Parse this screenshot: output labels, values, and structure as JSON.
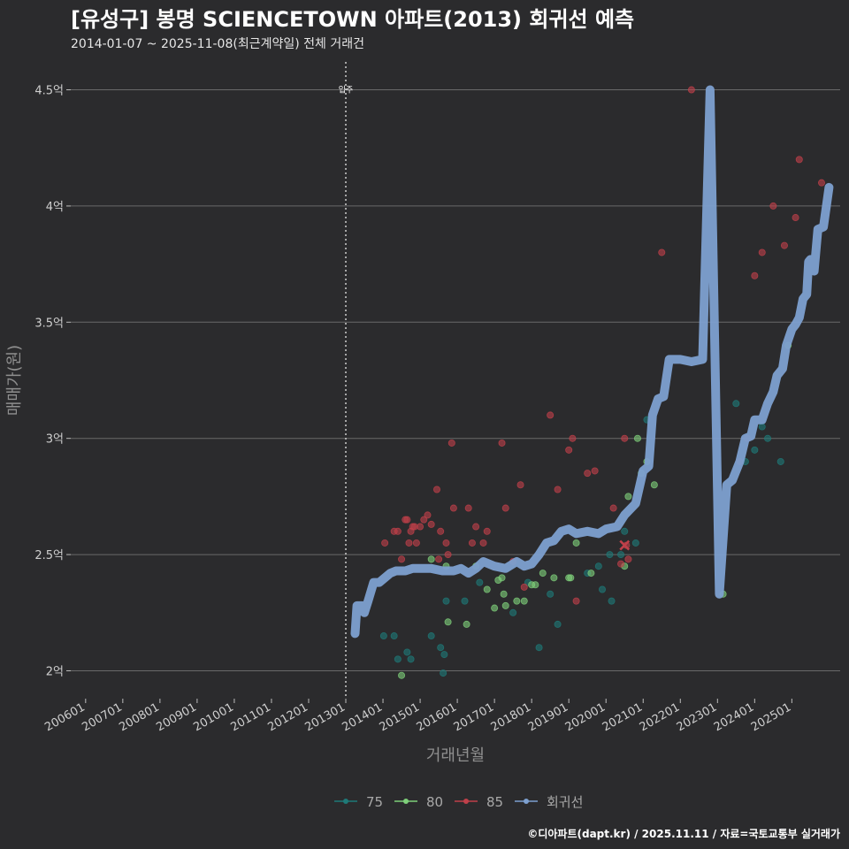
{
  "chart_data": {
    "type": "scatter",
    "title": "[유성구] 봉명 SCIENCETOWN 아파트(2013) 회귀선 예측",
    "subtitle": "2014-01-07 ~ 2025-11-08(최근계약일) 전체 거래건",
    "xlabel": "거래년월",
    "ylabel": "매매가(원)",
    "caption": "©디아파트(dapt.kr) / 2025.11.11 / 자료=국토교통부 실거래가",
    "annotation": "입주",
    "annotation_x": 2013.0,
    "xlim": [
      2005.6,
      2026.3
    ],
    "ylim": [
      1.88,
      4.62
    ],
    "x_ticks": [
      {
        "label": "200601",
        "x": 2006.0
      },
      {
        "label": "200701",
        "x": 2007.0
      },
      {
        "label": "200801",
        "x": 2008.0
      },
      {
        "label": "200901",
        "x": 2009.0
      },
      {
        "label": "201001",
        "x": 2010.0
      },
      {
        "label": "201101",
        "x": 2011.0
      },
      {
        "label": "201201",
        "x": 2012.0
      },
      {
        "label": "201301",
        "x": 2013.0
      },
      {
        "label": "201401",
        "x": 2014.0
      },
      {
        "label": "201501",
        "x": 2015.0
      },
      {
        "label": "201601",
        "x": 2016.0
      },
      {
        "label": "201701",
        "x": 2017.0
      },
      {
        "label": "201801",
        "x": 2018.0
      },
      {
        "label": "201901",
        "x": 2019.0
      },
      {
        "label": "202001",
        "x": 2020.0
      },
      {
        "label": "202101",
        "x": 2021.0
      },
      {
        "label": "202201",
        "x": 2022.0
      },
      {
        "label": "202301",
        "x": 2023.0
      },
      {
        "label": "202401",
        "x": 2024.0
      },
      {
        "label": "202501",
        "x": 2025.0
      }
    ],
    "y_ticks": [
      {
        "label": "2억",
        "y": 2.0
      },
      {
        "label": "2.5억",
        "y": 2.5
      },
      {
        "label": "3억",
        "y": 3.0
      },
      {
        "label": "3.5억",
        "y": 3.5
      },
      {
        "label": "4억",
        "y": 4.0
      },
      {
        "label": "4.5억",
        "y": 4.5
      }
    ],
    "legend": [
      {
        "name": "75",
        "color": "#1e7a78"
      },
      {
        "name": "80",
        "color": "#7ed07a"
      },
      {
        "name": "85",
        "color": "#c0404a"
      },
      {
        "name": "회귀선",
        "color": "#7da0d0"
      }
    ],
    "series": [
      {
        "name": "75",
        "color": "#1e7a78",
        "points": [
          [
            2014.02,
            2.15
          ],
          [
            2014.3,
            2.15
          ],
          [
            2014.4,
            2.05
          ],
          [
            2014.65,
            2.08
          ],
          [
            2014.75,
            2.05
          ],
          [
            2015.3,
            2.15
          ],
          [
            2015.55,
            2.1
          ],
          [
            2015.62,
            1.99
          ],
          [
            2015.65,
            2.07
          ],
          [
            2015.7,
            2.3
          ],
          [
            2016.2,
            2.3
          ],
          [
            2016.6,
            2.38
          ],
          [
            2017.5,
            2.25
          ],
          [
            2017.9,
            2.38
          ],
          [
            2018.2,
            2.1
          ],
          [
            2018.5,
            2.33
          ],
          [
            2018.7,
            2.2
          ],
          [
            2019.5,
            2.42
          ],
          [
            2019.8,
            2.45
          ],
          [
            2019.9,
            2.35
          ],
          [
            2020.1,
            2.5
          ],
          [
            2020.15,
            2.3
          ],
          [
            2020.4,
            2.5
          ],
          [
            2020.5,
            2.6
          ],
          [
            2020.8,
            2.55
          ],
          [
            2021.1,
            3.08
          ],
          [
            2023.5,
            3.15
          ],
          [
            2023.75,
            2.9
          ],
          [
            2024.0,
            2.95
          ],
          [
            2024.2,
            3.05
          ],
          [
            2024.35,
            3.0
          ],
          [
            2024.7,
            2.9
          ]
        ]
      },
      {
        "name": "80",
        "color": "#7ed07a",
        "points": [
          [
            2014.5,
            1.98
          ],
          [
            2015.3,
            2.48
          ],
          [
            2015.7,
            2.45
          ],
          [
            2015.75,
            2.21
          ],
          [
            2016.25,
            2.2
          ],
          [
            2016.5,
            2.45
          ],
          [
            2016.8,
            2.35
          ],
          [
            2017.0,
            2.27
          ],
          [
            2017.1,
            2.39
          ],
          [
            2017.2,
            2.4
          ],
          [
            2017.25,
            2.33
          ],
          [
            2017.3,
            2.28
          ],
          [
            2017.6,
            2.3
          ],
          [
            2017.8,
            2.3
          ],
          [
            2018.0,
            2.37
          ],
          [
            2018.1,
            2.37
          ],
          [
            2018.3,
            2.42
          ],
          [
            2018.6,
            2.4
          ],
          [
            2019.0,
            2.4
          ],
          [
            2019.05,
            2.4
          ],
          [
            2019.2,
            2.55
          ],
          [
            2019.6,
            2.42
          ],
          [
            2020.5,
            2.45
          ],
          [
            2020.6,
            2.75
          ],
          [
            2020.85,
            3.0
          ],
          [
            2020.95,
            2.85
          ],
          [
            2021.1,
            2.9
          ],
          [
            2021.3,
            2.8
          ],
          [
            2023.15,
            2.33
          ],
          [
            2024.9,
            3.4
          ]
        ]
      },
      {
        "name": "85",
        "color": "#c0404a",
        "points": [
          [
            2014.05,
            2.55
          ],
          [
            2014.3,
            2.6
          ],
          [
            2014.4,
            2.6
          ],
          [
            2014.5,
            2.48
          ],
          [
            2014.6,
            2.65
          ],
          [
            2014.65,
            2.65
          ],
          [
            2014.7,
            2.55
          ],
          [
            2014.75,
            2.6
          ],
          [
            2014.8,
            2.62
          ],
          [
            2014.85,
            2.62
          ],
          [
            2014.9,
            2.55
          ],
          [
            2015.0,
            2.62
          ],
          [
            2015.1,
            2.65
          ],
          [
            2015.2,
            2.67
          ],
          [
            2015.3,
            2.63
          ],
          [
            2015.45,
            2.78
          ],
          [
            2015.5,
            2.48
          ],
          [
            2015.55,
            2.6
          ],
          [
            2015.7,
            2.55
          ],
          [
            2015.75,
            2.5
          ],
          [
            2015.85,
            2.98
          ],
          [
            2015.9,
            2.7
          ],
          [
            2016.3,
            2.7
          ],
          [
            2016.4,
            2.55
          ],
          [
            2016.5,
            2.62
          ],
          [
            2016.7,
            2.55
          ],
          [
            2016.8,
            2.6
          ],
          [
            2017.2,
            2.98
          ],
          [
            2017.3,
            2.7
          ],
          [
            2017.5,
            2.47
          ],
          [
            2017.7,
            2.8
          ],
          [
            2017.8,
            2.36
          ],
          [
            2018.5,
            3.1
          ],
          [
            2018.7,
            2.78
          ],
          [
            2019.0,
            2.95
          ],
          [
            2019.1,
            3.0
          ],
          [
            2019.2,
            2.3
          ],
          [
            2019.5,
            2.85
          ],
          [
            2019.7,
            2.86
          ],
          [
            2020.2,
            2.7
          ],
          [
            2020.4,
            2.46
          ],
          [
            2020.5,
            3.0
          ],
          [
            2020.55,
            2.54
          ],
          [
            2020.6,
            2.48
          ],
          [
            2021.5,
            3.8
          ],
          [
            2022.3,
            4.5
          ],
          [
            2023.6,
            2.9
          ],
          [
            2023.8,
            3.0
          ],
          [
            2024.0,
            3.7
          ],
          [
            2024.2,
            3.8
          ],
          [
            2024.5,
            4.0
          ],
          [
            2024.8,
            3.83
          ],
          [
            2025.1,
            3.95
          ],
          [
            2025.2,
            4.2
          ],
          [
            2025.8,
            4.1
          ]
        ]
      }
    ],
    "regression": {
      "name": "회귀선",
      "color": "#7da0d0",
      "points": [
        [
          2013.25,
          2.16
        ],
        [
          2013.3,
          2.28
        ],
        [
          2013.45,
          2.28
        ],
        [
          2013.5,
          2.25
        ],
        [
          2013.6,
          2.3
        ],
        [
          2013.75,
          2.38
        ],
        [
          2013.9,
          2.38
        ],
        [
          2014.05,
          2.4
        ],
        [
          2014.2,
          2.42
        ],
        [
          2014.35,
          2.43
        ],
        [
          2014.6,
          2.43
        ],
        [
          2014.8,
          2.44
        ],
        [
          2015.0,
          2.44
        ],
        [
          2015.3,
          2.44
        ],
        [
          2015.6,
          2.43
        ],
        [
          2015.9,
          2.43
        ],
        [
          2016.1,
          2.44
        ],
        [
          2016.3,
          2.42
        ],
        [
          2016.5,
          2.44
        ],
        [
          2016.7,
          2.47
        ],
        [
          2017.0,
          2.45
        ],
        [
          2017.3,
          2.44
        ],
        [
          2017.6,
          2.47
        ],
        [
          2017.8,
          2.45
        ],
        [
          2018.0,
          2.46
        ],
        [
          2018.2,
          2.5
        ],
        [
          2018.4,
          2.55
        ],
        [
          2018.6,
          2.56
        ],
        [
          2018.8,
          2.6
        ],
        [
          2019.0,
          2.61
        ],
        [
          2019.2,
          2.59
        ],
        [
          2019.5,
          2.6
        ],
        [
          2019.8,
          2.59
        ],
        [
          2020.0,
          2.61
        ],
        [
          2020.3,
          2.62
        ],
        [
          2020.5,
          2.67
        ],
        [
          2020.8,
          2.72
        ],
        [
          2021.0,
          2.86
        ],
        [
          2021.15,
          2.88
        ],
        [
          2021.25,
          3.1
        ],
        [
          2021.4,
          3.17
        ],
        [
          2021.55,
          3.18
        ],
        [
          2021.7,
          3.34
        ],
        [
          2022.0,
          3.34
        ],
        [
          2022.3,
          3.33
        ],
        [
          2022.6,
          3.34
        ],
        [
          2022.8,
          4.5
        ],
        [
          2023.05,
          2.33
        ],
        [
          2023.25,
          2.8
        ],
        [
          2023.4,
          2.82
        ],
        [
          2023.6,
          2.9
        ],
        [
          2023.75,
          3.0
        ],
        [
          2023.9,
          3.01
        ],
        [
          2024.0,
          3.08
        ],
        [
          2024.2,
          3.08
        ],
        [
          2024.35,
          3.15
        ],
        [
          2024.5,
          3.2
        ],
        [
          2024.6,
          3.27
        ],
        [
          2024.75,
          3.3
        ],
        [
          2024.85,
          3.4
        ],
        [
          2025.0,
          3.47
        ],
        [
          2025.1,
          3.49
        ],
        [
          2025.2,
          3.52
        ],
        [
          2025.3,
          3.6
        ],
        [
          2025.4,
          3.62
        ],
        [
          2025.45,
          3.76
        ],
        [
          2025.5,
          3.77
        ],
        [
          2025.6,
          3.72
        ],
        [
          2025.7,
          3.9
        ],
        [
          2025.85,
          3.91
        ],
        [
          2026.0,
          4.08
        ]
      ]
    },
    "highlight": {
      "x": 2020.5,
      "y": 2.54,
      "color": "#c0404a"
    }
  }
}
